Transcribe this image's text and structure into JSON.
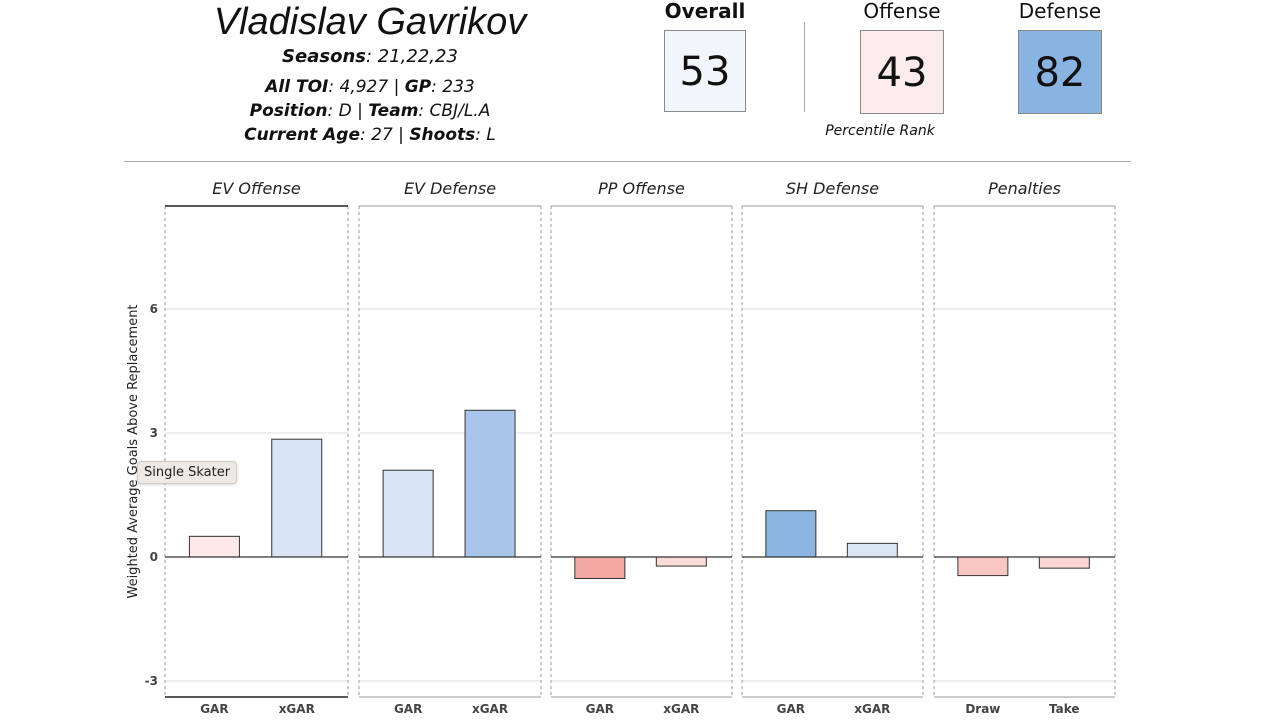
{
  "player": {
    "name": "Vladislav Gavrikov",
    "seasons_label": "Seasons",
    "seasons": "21,22,23",
    "toi_label": "All TOI",
    "toi": "4,927",
    "gp_label": "GP",
    "gp": "233",
    "position_label": "Position",
    "position": "D",
    "team_label": "Team",
    "team": "CBJ/L.A",
    "age_label": "Current Age",
    "age": "27",
    "shoots_label": "Shoots",
    "shoots": "L"
  },
  "scores": {
    "overall_label": "Overall",
    "overall": "53",
    "overall_color": "#f1f6fc",
    "offense_label": "Offense",
    "offense": "43",
    "offense_color": "#fbeceb",
    "defense_label": "Defense",
    "defense": "82",
    "defense_color": "#89b4e2",
    "percentile_label": "Percentile Rank"
  },
  "tooltip": "Single Skater",
  "chart_data": {
    "type": "bar",
    "ylabel": "Weighted Average Goals Above Replacement",
    "ylim": [
      -3.2,
      8.2
    ],
    "yticks": [
      -3,
      0,
      3,
      6
    ],
    "grid": true,
    "panels": [
      {
        "title": "EV Offense",
        "categories": [
          "GAR",
          "xGAR"
        ],
        "values": [
          0.5,
          2.85
        ],
        "colors": [
          "#fde9e7",
          "#d9e5f5"
        ]
      },
      {
        "title": "EV Defense",
        "categories": [
          "GAR",
          "xGAR"
        ],
        "values": [
          2.1,
          3.55
        ],
        "colors": [
          "#d9e5f5",
          "#a9c6ea"
        ]
      },
      {
        "title": "PP Offense",
        "categories": [
          "GAR",
          "xGAR"
        ],
        "values": [
          -0.52,
          -0.22
        ],
        "colors": [
          "#f3a8a3",
          "#fbdcd8"
        ]
      },
      {
        "title": "SH Defense",
        "categories": [
          "GAR",
          "xGAR"
        ],
        "values": [
          1.12,
          0.33
        ],
        "colors": [
          "#8db5e2",
          "#dbe6f5"
        ]
      },
      {
        "title": "Penalties",
        "categories": [
          "Draw",
          "Take"
        ],
        "values": [
          -0.45,
          -0.27
        ],
        "colors": [
          "#f8c7c3",
          "#fbd6d2"
        ]
      }
    ]
  }
}
